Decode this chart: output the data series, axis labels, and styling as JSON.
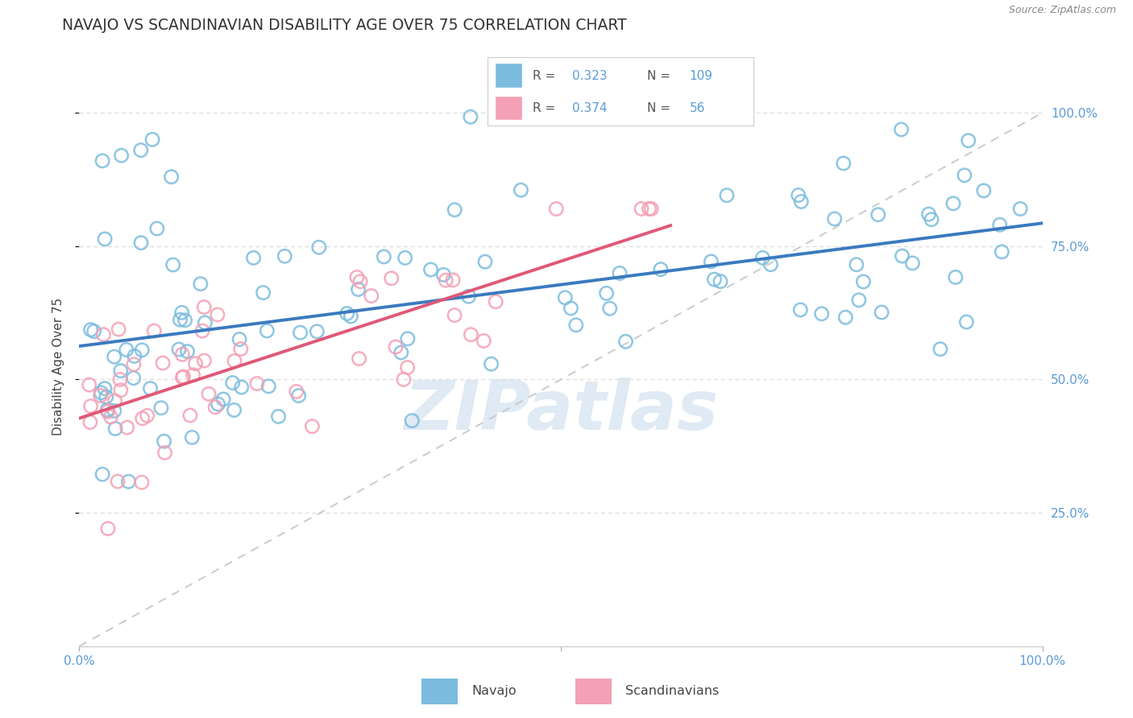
{
  "title": "NAVAJO VS SCANDINAVIAN DISABILITY AGE OVER 75 CORRELATION CHART",
  "source": "Source: ZipAtlas.com",
  "ylabel": "Disability Age Over 75",
  "legend_label1": "Navajo",
  "legend_label2": "Scandinavians",
  "R1": 0.323,
  "N1": 109,
  "R2": 0.374,
  "N2": 56,
  "navajo_color": "#7bbcde",
  "scand_color": "#f4a0b5",
  "trend1_color": "#3a7abf",
  "trend2_color": "#e05878",
  "ref_line_color": "#c8c8c8",
  "watermark_color": "#ccdded",
  "grid_color": "#dddddd",
  "title_color": "#333333",
  "axis_label_color": "#5b9bd5",
  "right_label_color": "#5b9bd5",
  "xmin": 0.0,
  "xmax": 1.0,
  "ymin": 0.0,
  "ymax": 1.05,
  "yticks": [
    0.25,
    0.5,
    0.75,
    1.0
  ],
  "ytick_labels": [
    "25.0%",
    "50.0%",
    "75.0%",
    "100.0%"
  ],
  "xticks": [
    0.0,
    0.5,
    1.0
  ],
  "xtick_labels": [
    "0.0%",
    "",
    "100.0%"
  ]
}
